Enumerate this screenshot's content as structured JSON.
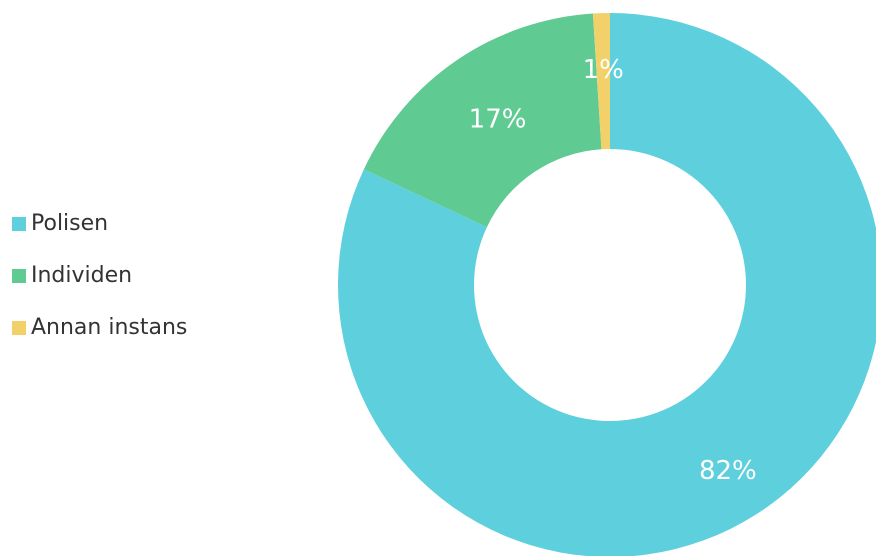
{
  "chart_data": {
    "type": "pie",
    "donut": true,
    "start_angle_deg": 0,
    "direction": "clockwise",
    "legend_position": "left",
    "title": "",
    "slices": [
      {
        "label": "Polisen",
        "value": 82,
        "display": "82%",
        "color": "#5ecfdc"
      },
      {
        "label": "Individen",
        "value": 17,
        "display": "17%",
        "color": "#5fca92"
      },
      {
        "label": "Annan instans",
        "value": 1,
        "display": "1%",
        "color": "#f2d16b"
      }
    ]
  }
}
